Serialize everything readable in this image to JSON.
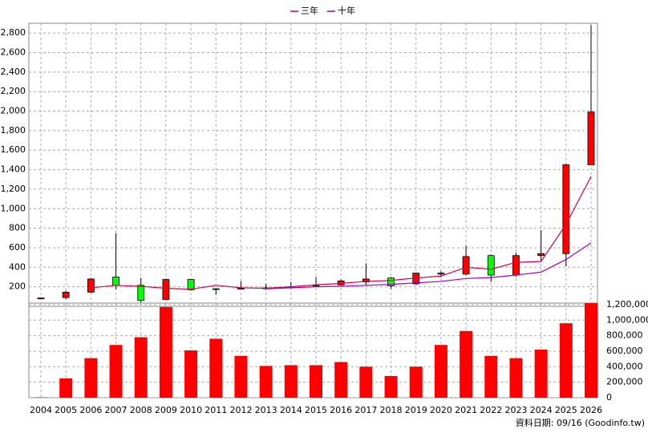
{
  "chart_data": [
    {
      "type": "candlestick",
      "open": [
        85,
        90,
        145,
        300,
        215,
        70,
        275,
        180,
        180,
        190,
        190,
        210,
        220,
        250,
        290,
        230,
        330,
        330,
        520,
        320,
        520,
        540,
        1450
      ],
      "high": [
        90,
        160,
        290,
        750,
        290,
        280,
        280,
        185,
        260,
        230,
        250,
        300,
        275,
        440,
        300,
        345,
        360,
        620,
        530,
        550,
        780,
        1460,
        2880
      ],
      "low": [
        80,
        75,
        140,
        175,
        40,
        60,
        160,
        120,
        175,
        170,
        180,
        200,
        210,
        220,
        180,
        220,
        300,
        320,
        250,
        300,
        470,
        410,
        1450
      ],
      "close": [
        85,
        145,
        280,
        215,
        60,
        275,
        170,
        175,
        185,
        180,
        200,
        220,
        260,
        280,
        210,
        340,
        340,
        510,
        320,
        520,
        540,
        1450,
        1990
      ],
      "up_color": "#ff0000",
      "down_color": "#00ff00",
      "series": [
        {
          "name": "三年",
          "color": "#d8004a",
          "values": [
            null,
            null,
            190,
            215,
            205,
            185,
            175,
            215,
            190,
            185,
            200,
            220,
            235,
            255,
            265,
            290,
            310,
            400,
            380,
            450,
            460,
            840,
            1330
          ]
        },
        {
          "name": "十年",
          "color": "#9900cc",
          "values": [
            null,
            null,
            null,
            null,
            null,
            null,
            null,
            null,
            null,
            180,
            190,
            200,
            205,
            215,
            225,
            240,
            255,
            285,
            295,
            320,
            350,
            480,
            650
          ]
        }
      ],
      "ylim": [
        0,
        2900
      ],
      "yticks": [
        200,
        400,
        600,
        800,
        {
          "value": 1000,
          "label": "1,000"
        },
        {
          "value": 1200,
          "label": "1,200"
        },
        {
          "value": 1400,
          "label": "1,400"
        },
        {
          "value": 1600,
          "label": "1,600"
        },
        {
          "value": 1800,
          "label": "1,800"
        },
        {
          "value": 2000,
          "label": "2,000"
        },
        {
          "value": 2200,
          "label": "2,200"
        },
        {
          "value": 2400,
          "label": "2,400"
        },
        {
          "value": 2600,
          "label": "2,600"
        },
        {
          "value": 2800,
          "label": "2,800"
        }
      ],
      "grid": true
    },
    {
      "type": "bar",
      "categories": [
        "2004",
        "2005",
        "2006",
        "2007",
        "2008",
        "2009",
        "2010",
        "2011",
        "2012",
        "2013",
        "2014",
        "2015",
        "2016",
        "2017",
        "2018",
        "2019",
        "2020",
        "2021",
        "2022",
        "2023",
        "2024",
        "2025",
        "2026"
      ],
      "values": [
        5000,
        250000,
        510000,
        680000,
        780000,
        1170000,
        610000,
        760000,
        540000,
        410000,
        420000,
        420000,
        460000,
        400000,
        280000,
        400000,
        680000,
        860000,
        540000,
        510000,
        620000,
        960000,
        1220000
      ],
      "color": "#ff0000",
      "ylim": [
        0,
        1220000
      ],
      "yticks": [
        0,
        {
          "value": 200000,
          "label": "200,000"
        },
        {
          "value": 400000,
          "label": "400,000"
        },
        {
          "value": 600000,
          "label": "600,000"
        },
        {
          "value": 800000,
          "label": "800,000"
        },
        {
          "value": 1000000,
          "label": "1,000,000"
        },
        {
          "value": 1200000,
          "label": "1,200,000"
        }
      ],
      "grid": true,
      "source": "資料日期: 09/16  (Goodinfo.tw)"
    }
  ]
}
